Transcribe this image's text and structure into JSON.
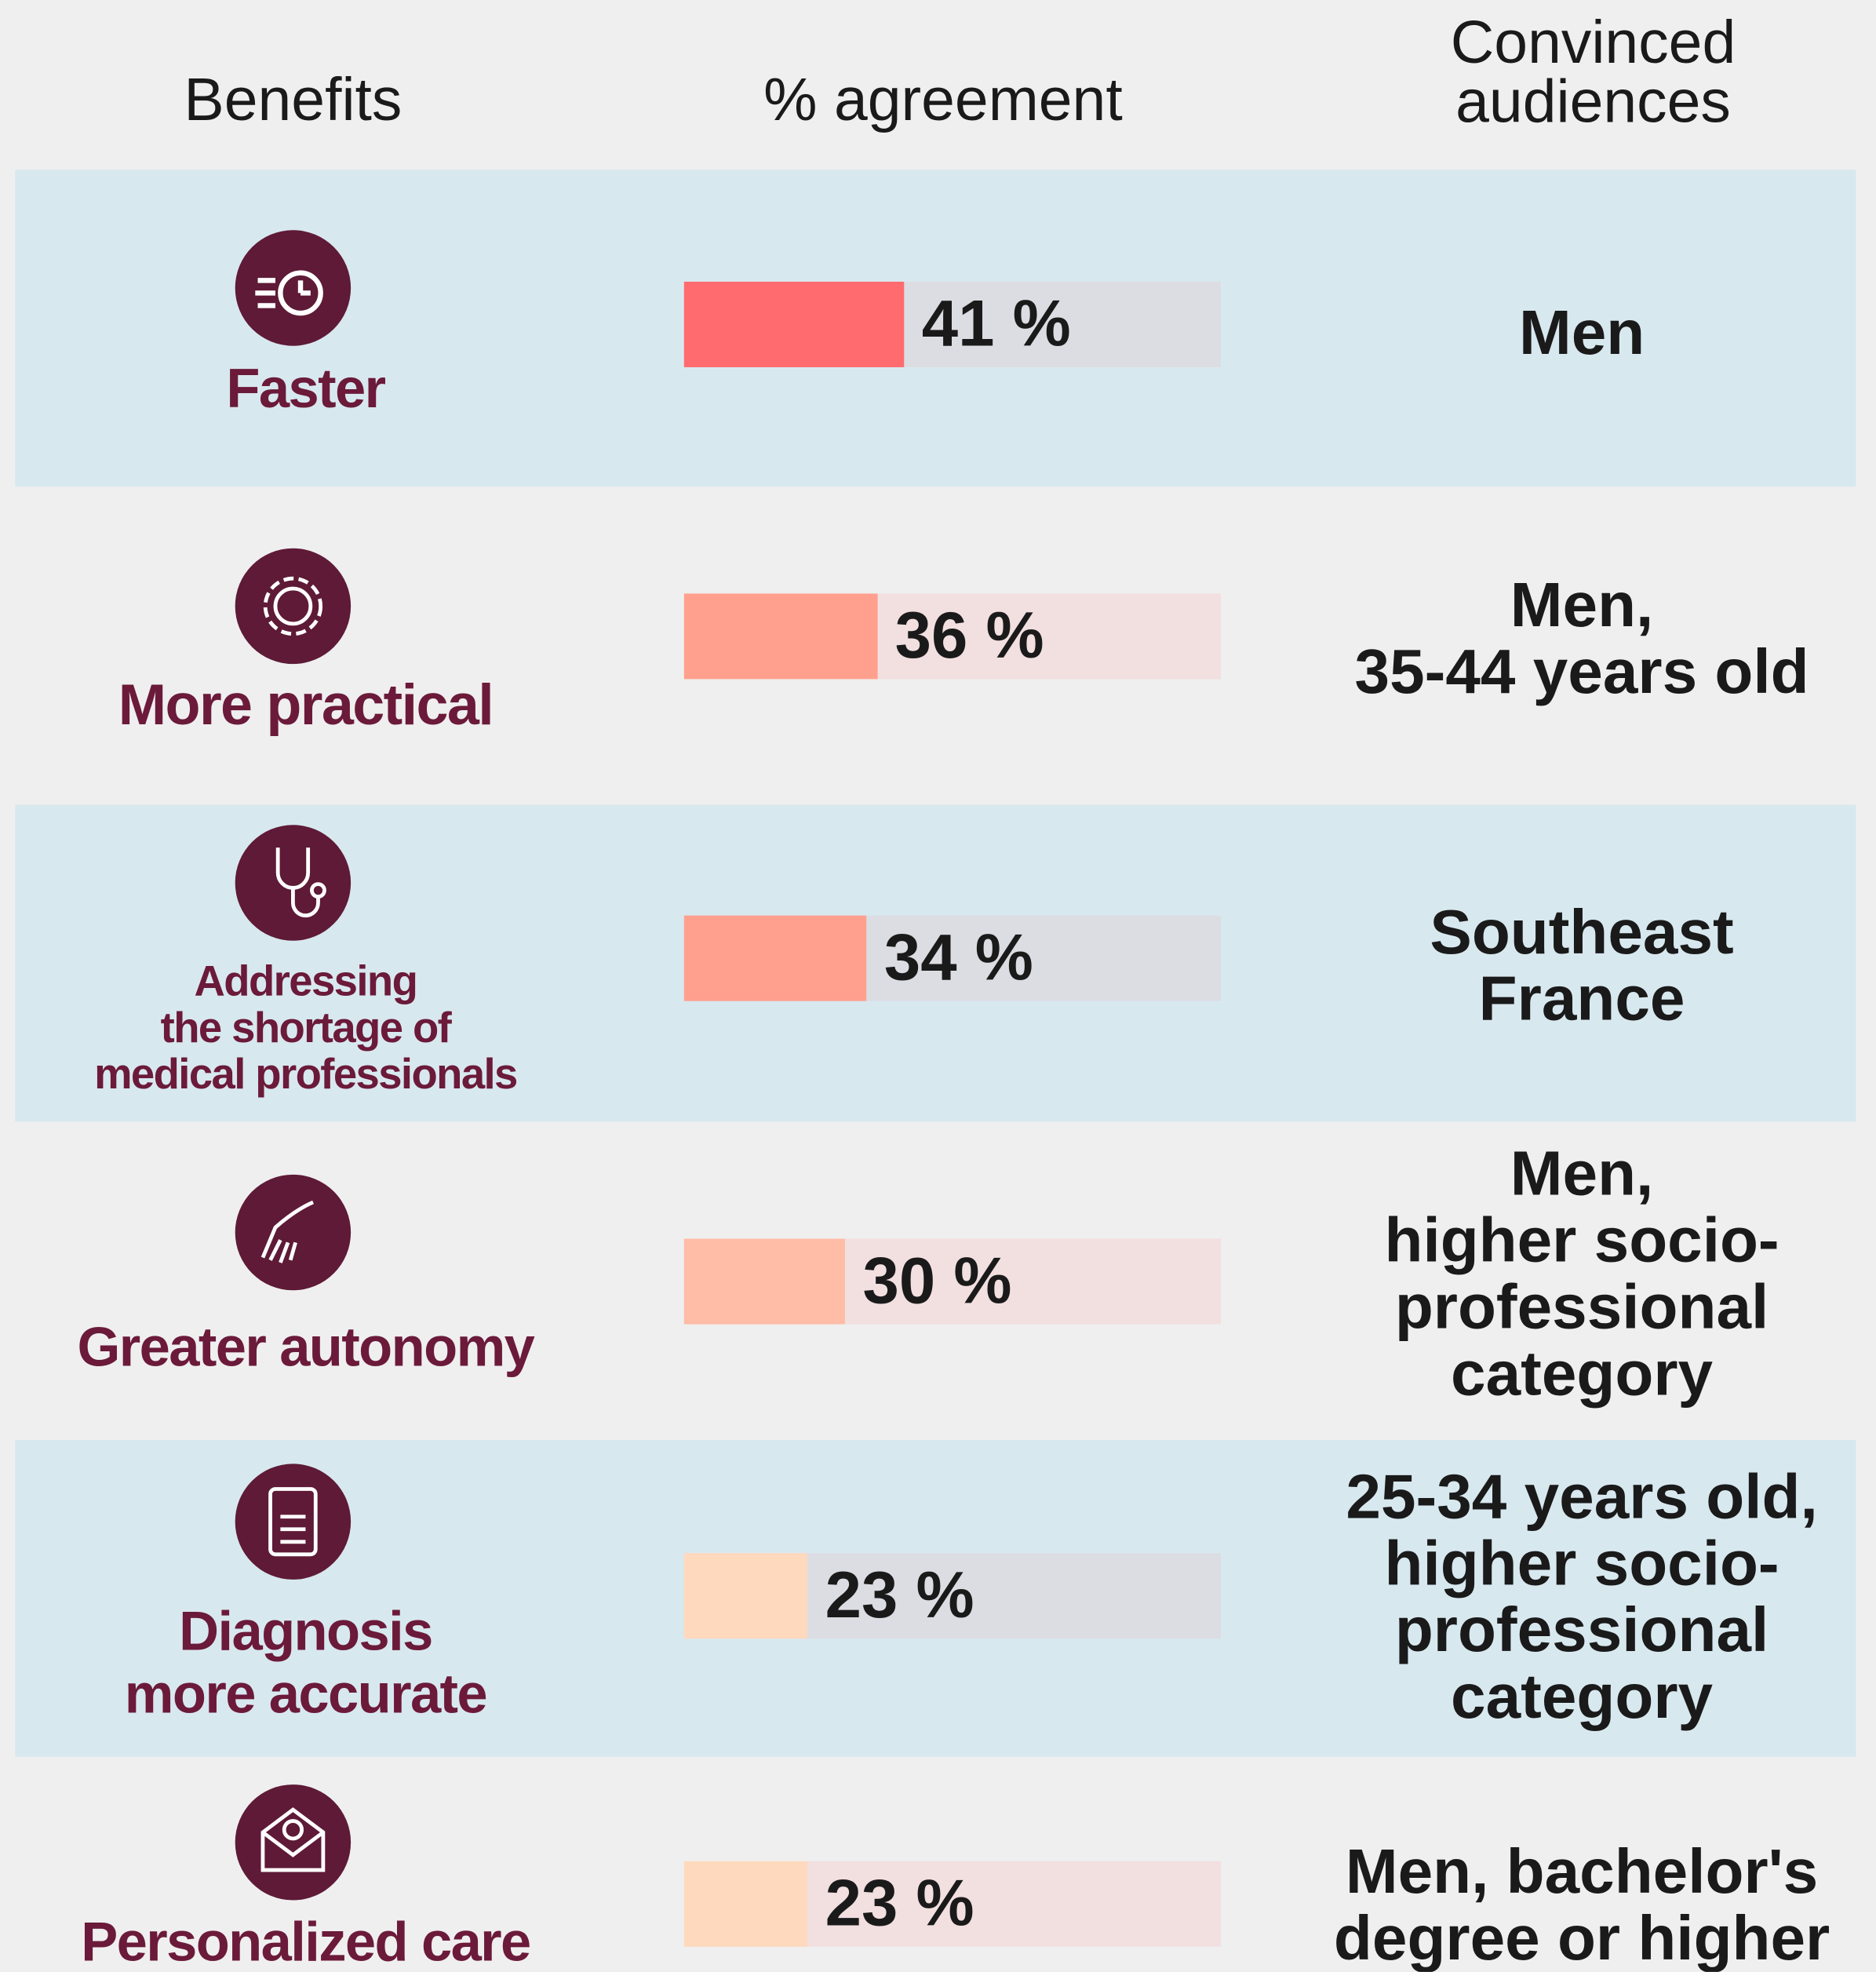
{
  "chart_data": {
    "type": "bar",
    "column_headers": [
      "Benefits",
      "% agreement",
      "Convinced\naudiences"
    ],
    "categories": [
      "Faster",
      "More practical",
      "Addressing\nthe shortage of\nmedical professionals",
      "Greater autonomy",
      "Diagnosis\nmore accurate",
      "Personalized care"
    ],
    "values": [
      41,
      36,
      34,
      30,
      23,
      23
    ],
    "value_labels": [
      "41 %",
      "36 %",
      "34 %",
      "30 %",
      "23 %",
      "23 %"
    ],
    "colors": [
      "#ff6b6e",
      "#ffa08e",
      "#ffa08e",
      "#ffbca6",
      "#ffd9bd",
      "#ffd9bd"
    ],
    "audiences": [
      "Men",
      "Men,\n35-44 years old",
      "Southeast\nFrance",
      "Men,\nhigher socio-\nprofessional\ncategory",
      "25-34 years old,\nhigher socio-\nprofessional\ncategory",
      "Men, bachelor's\ndegree or higher"
    ],
    "xlim": [
      0,
      100
    ]
  }
}
